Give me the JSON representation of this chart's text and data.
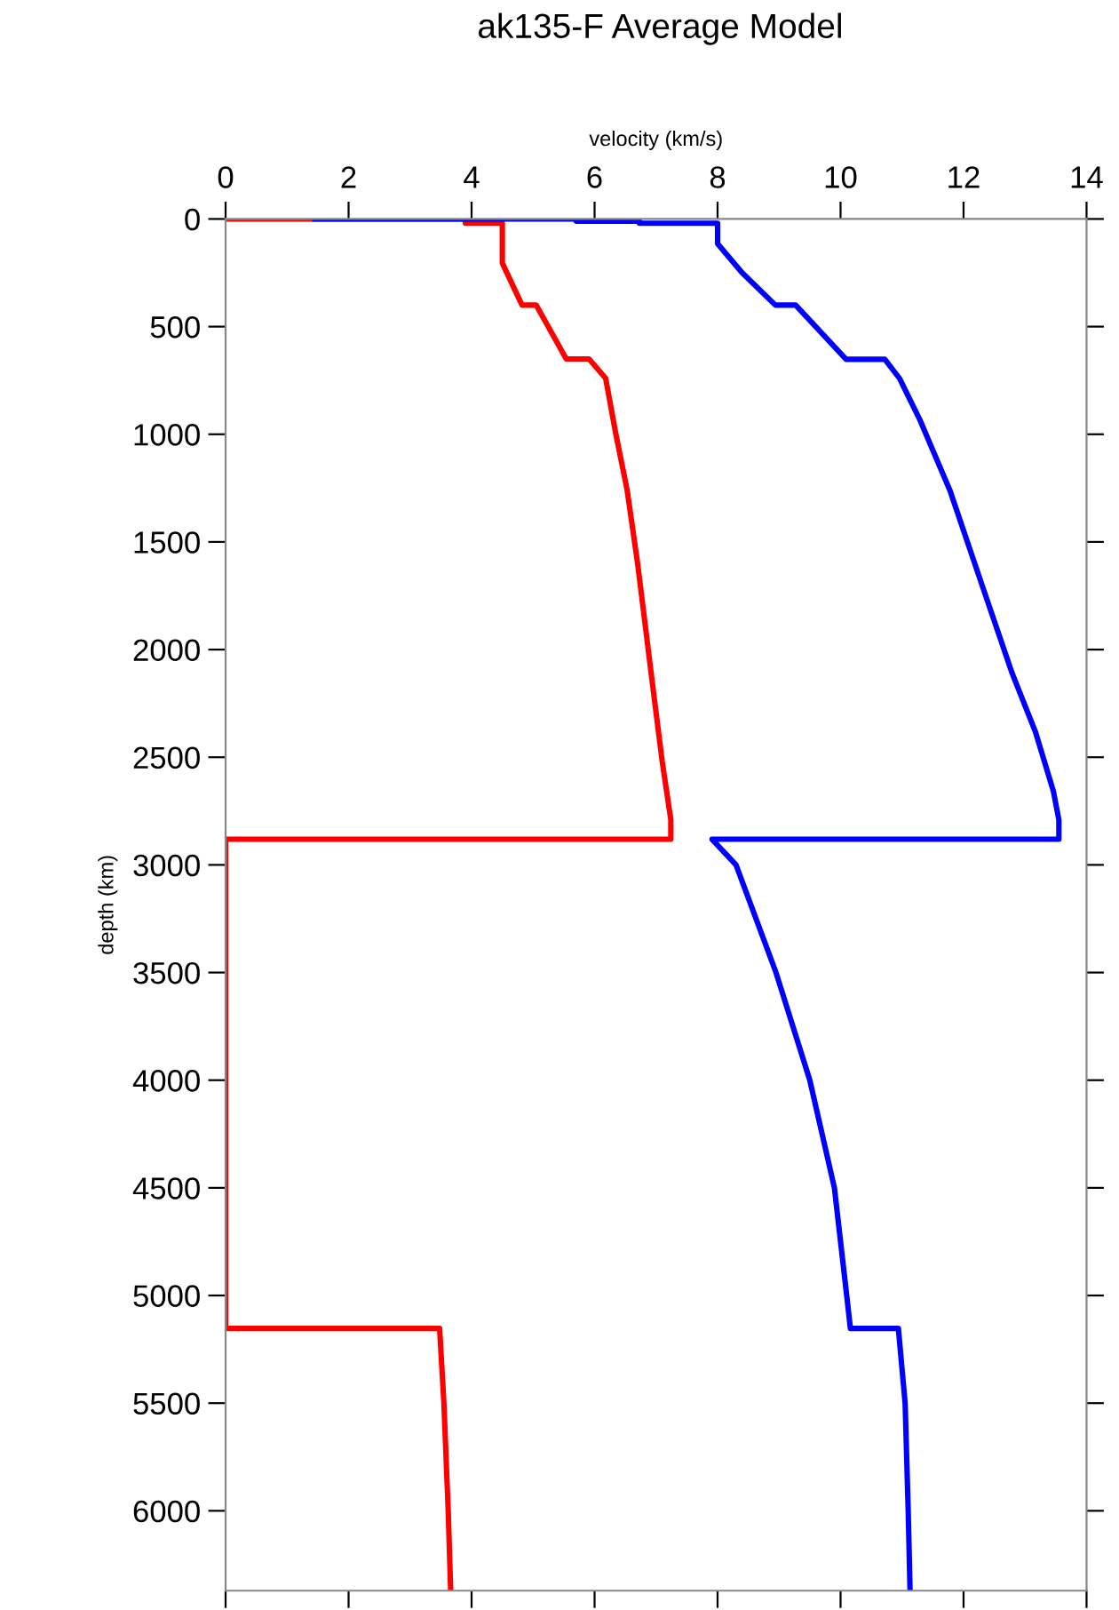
{
  "chart_data": {
    "type": "line",
    "title": "ak135-F Average Model",
    "xlabel": "velocity (km/s)",
    "ylabel": "depth (km)",
    "xlim": [
      0,
      14
    ],
    "xticks": [
      0,
      2,
      4,
      6,
      8,
      10,
      12,
      14
    ],
    "ylim": [
      6371,
      0
    ],
    "yticks": [
      0,
      500,
      1000,
      1500,
      2000,
      2500,
      3000,
      3500,
      4000,
      4500,
      5000,
      5500,
      6000
    ],
    "grid": false,
    "marker": "none",
    "line_style": "solid",
    "series": [
      {
        "color": "#ff0000",
        "x": [
          0,
          3.9,
          3.9,
          4.5,
          4.5,
          4.82,
          5.05,
          5.54,
          5.91,
          6.18,
          6.34,
          6.53,
          6.7,
          6.92,
          7.1,
          7.24,
          7.24,
          0,
          0,
          3.48,
          3.55,
          3.62,
          3.66
        ],
        "values": [
          0,
          0,
          20,
          20,
          205,
          400,
          400,
          650,
          650,
          740,
          990,
          1260,
          1600,
          2110,
          2520,
          2790,
          2881,
          2881,
          5153,
          5153,
          5500,
          6000,
          6371
        ]
      },
      {
        "color": "#0000ff",
        "x": [
          1.45,
          5.7,
          5.7,
          6.73,
          6.73,
          8.0,
          8.0,
          8.4,
          8.94,
          9.27,
          10.09,
          10.72,
          10.96,
          11.29,
          11.78,
          12.3,
          12.79,
          13.17,
          13.46,
          13.55,
          13.55,
          7.91,
          8.3,
          8.95,
          9.5,
          9.9,
          10.1,
          10.16,
          10.94,
          11.05,
          11.1,
          11.13
        ],
        "values": [
          0,
          0,
          10,
          10,
          20,
          20,
          115,
          250,
          400,
          400,
          652,
          652,
          741,
          933,
          1262,
          1700,
          2110,
          2383,
          2657,
          2791,
          2881,
          2881,
          3000,
          3500,
          4000,
          4500,
          5000,
          5153,
          5153,
          5500,
          6000,
          6371
        ]
      }
    ]
  }
}
